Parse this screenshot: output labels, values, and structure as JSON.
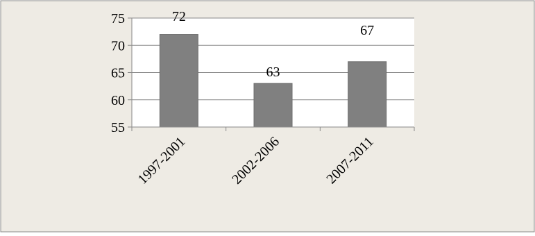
{
  "colors": {
    "background": "#eeebe4",
    "plot_area": "#ffffff",
    "border": "#8c8c8c",
    "bar": "#808080",
    "bar_outline": "#6e6e6e",
    "gridline": "#8a8a8a",
    "text": "#000000"
  },
  "chart_data": {
    "type": "bar",
    "title": "",
    "xlabel": "",
    "ylabel": "",
    "categories": [
      "1997-2001",
      "2002-2006",
      "2007-2011"
    ],
    "values": [
      72,
      63,
      67
    ],
    "data_labels": [
      "72",
      "63",
      "67"
    ],
    "ylim": [
      55,
      75
    ],
    "yticks": [
      55,
      60,
      65,
      70,
      75
    ],
    "grid": true,
    "legend": "none"
  }
}
